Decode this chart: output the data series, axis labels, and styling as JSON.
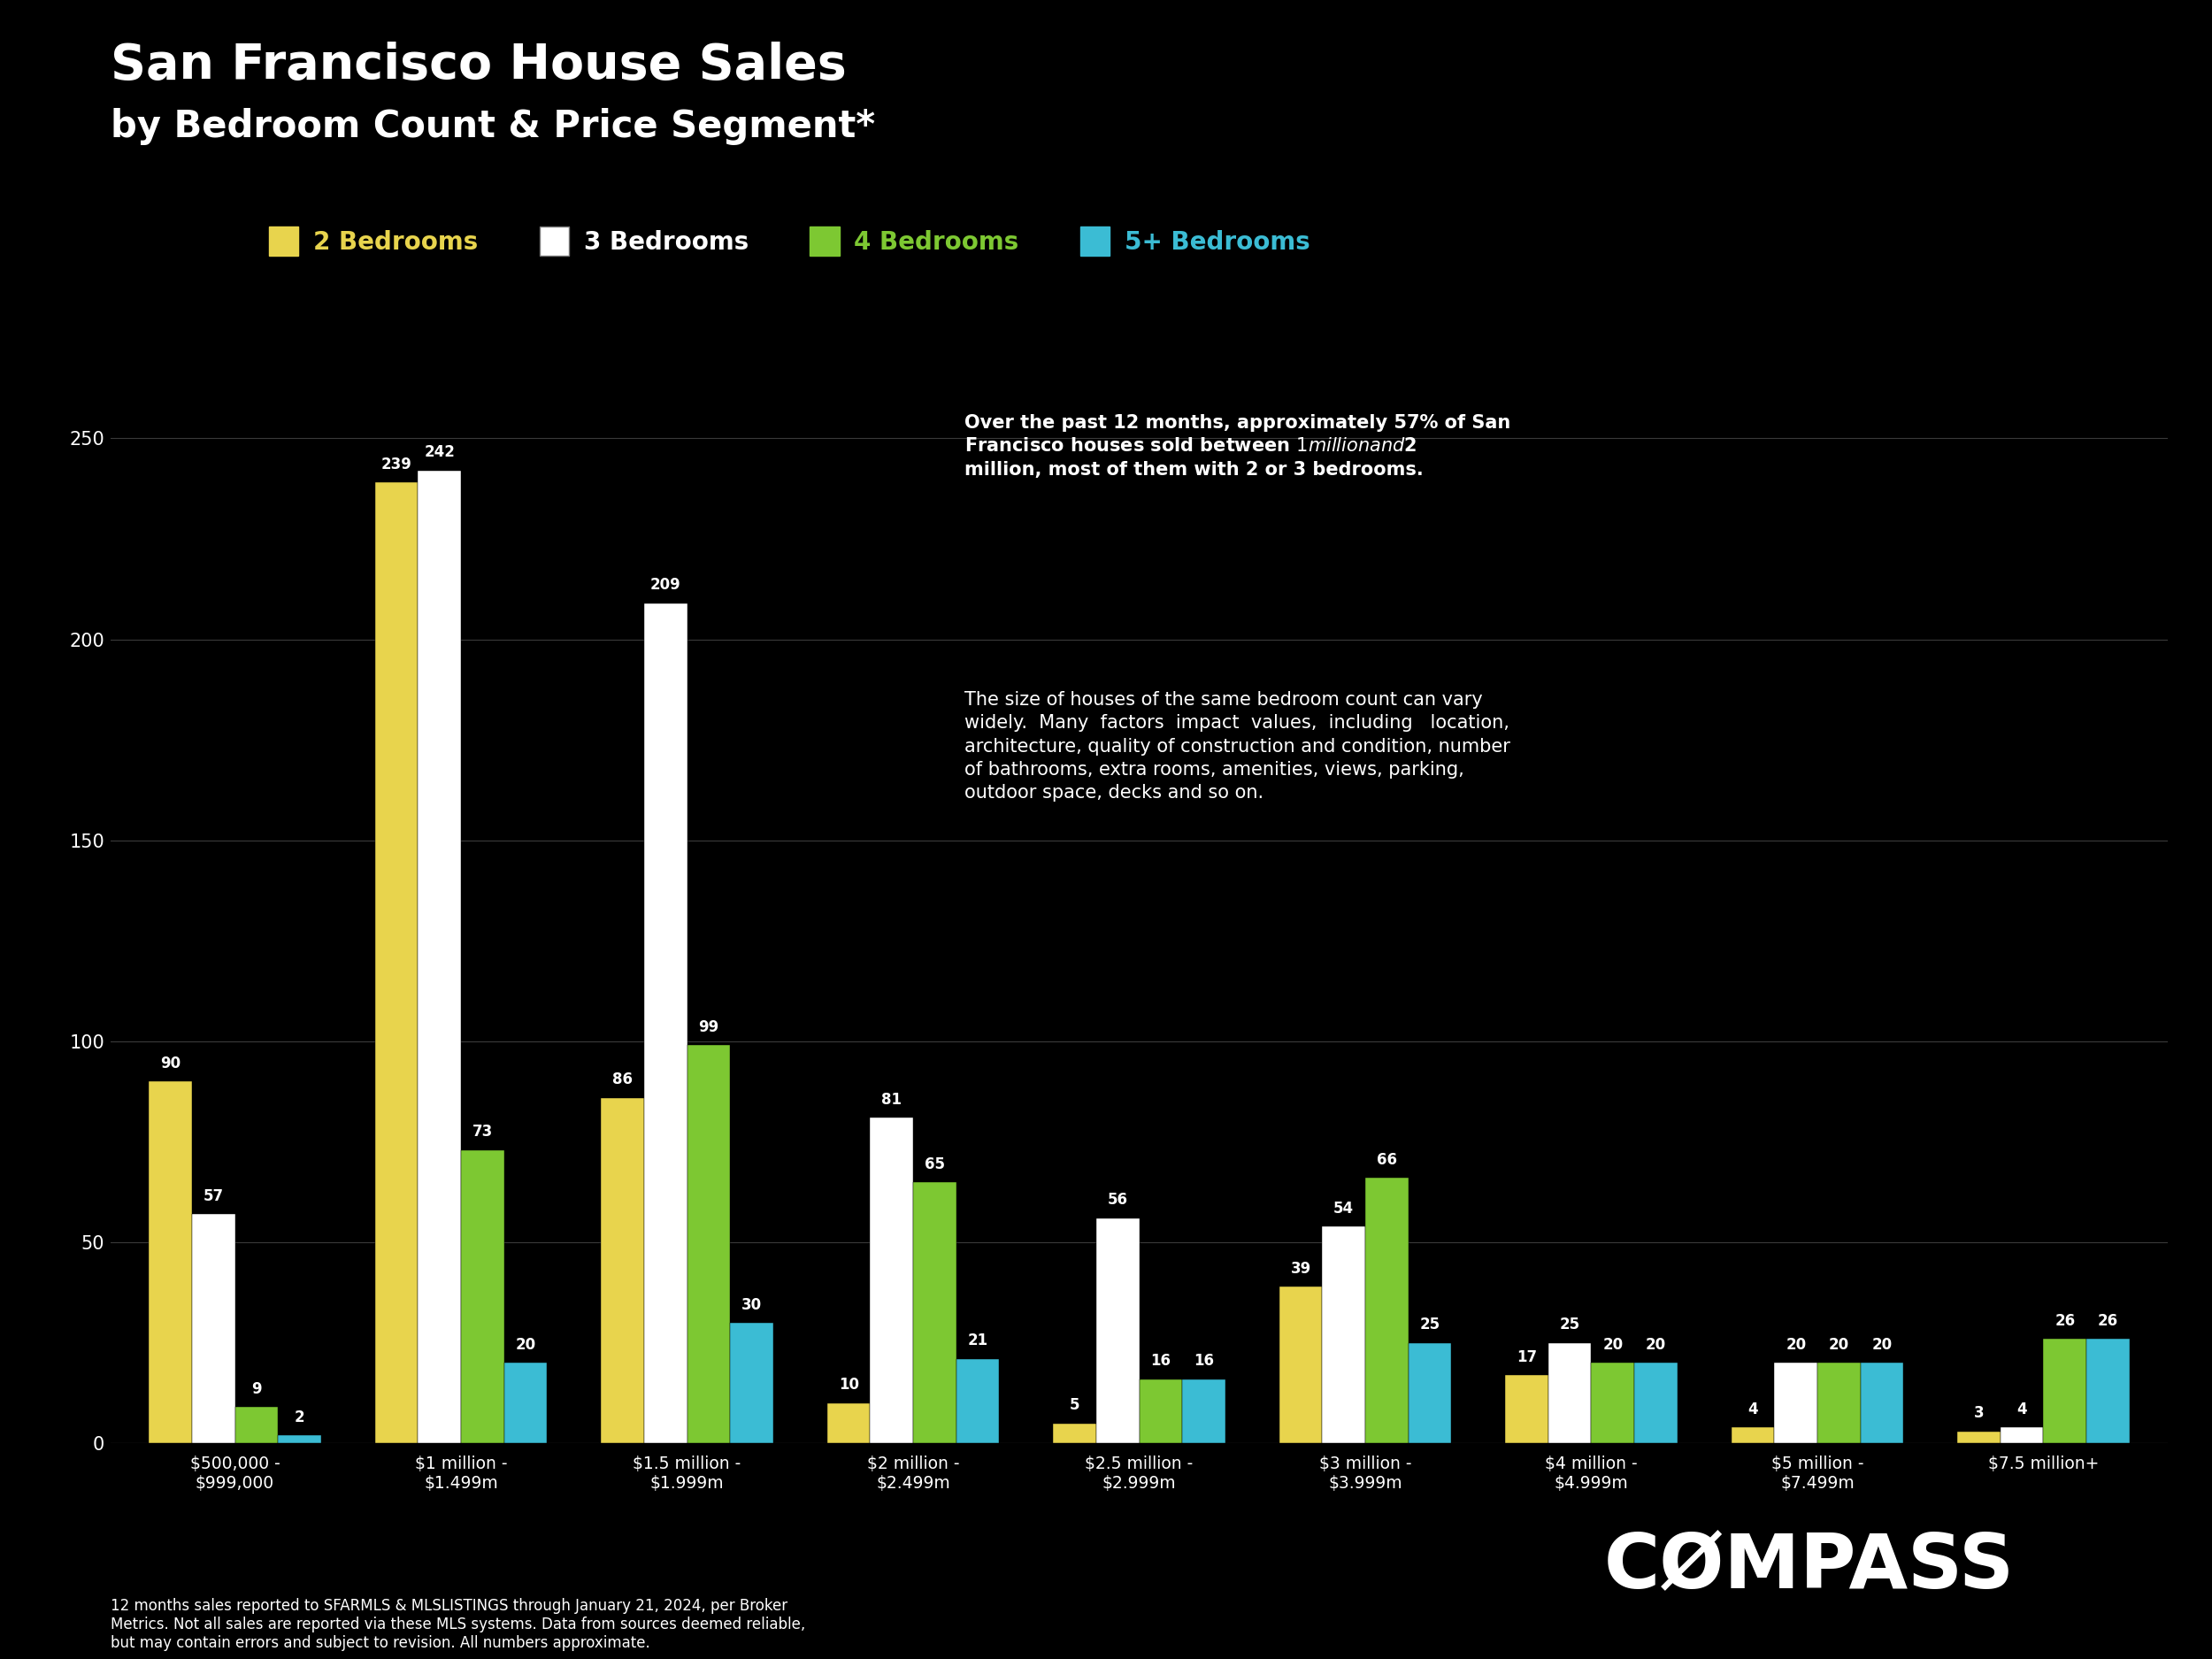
{
  "title": "San Francisco House Sales",
  "subtitle": "by Bedroom Count & Price Segment*",
  "background_color": "#000000",
  "text_color": "#ffffff",
  "categories": [
    "$500,000 -\n$999,000",
    "$1 million -\n$1.499m",
    "$1.5 million -\n$1.999m",
    "$2 million -\n$2.499m",
    "$2.5 million -\n$2.999m",
    "$3 million -\n$3.999m",
    "$4 million -\n$4.999m",
    "$5 million -\n$7.499m",
    "$7.5 million+"
  ],
  "series": {
    "2 Bedrooms": [
      90,
      239,
      86,
      10,
      5,
      39,
      17,
      4,
      3
    ],
    "3 Bedrooms": [
      57,
      242,
      209,
      81,
      56,
      54,
      25,
      20,
      4
    ],
    "4 Bedrooms": [
      9,
      73,
      99,
      65,
      16,
      66,
      20,
      20,
      26
    ],
    "5+ Bedrooms": [
      2,
      20,
      30,
      21,
      16,
      25,
      20,
      20,
      26
    ]
  },
  "bar_colors": {
    "2 Bedrooms": "#e8d44d",
    "3 Bedrooms": "#ffffff",
    "4 Bedrooms": "#7dc832",
    "5+ Bedrooms": "#3bbcd4"
  },
  "ylim": [
    0,
    260
  ],
  "yticks": [
    0,
    50,
    100,
    150,
    200,
    250
  ],
  "grid_color": "#3a3a3a",
  "annotation_line1_bold": "Over the past 12 months, approximately 57% of San Francisco houses sold between $1 million and $2 million, most of them with 2 or 3 bedrooms.",
  "annotation_line2": "The size of houses of the same bedroom count can vary widely. Many factors impact values, including  location, architecture, quality of construction and condition, number of bathrooms, extra rooms, amenities, views, parking, outdoor space, decks and so on.",
  "footnote": "12 months sales reported to SFARMLS & MLSLISTINGS through January 21, 2024, per Broker\nMetrics. Not all sales are reported via these MLS systems. Data from sources deemed reliable,\nbut may contain errors and subject to revision. All numbers approximate.",
  "compass_text": "CØMPASS"
}
